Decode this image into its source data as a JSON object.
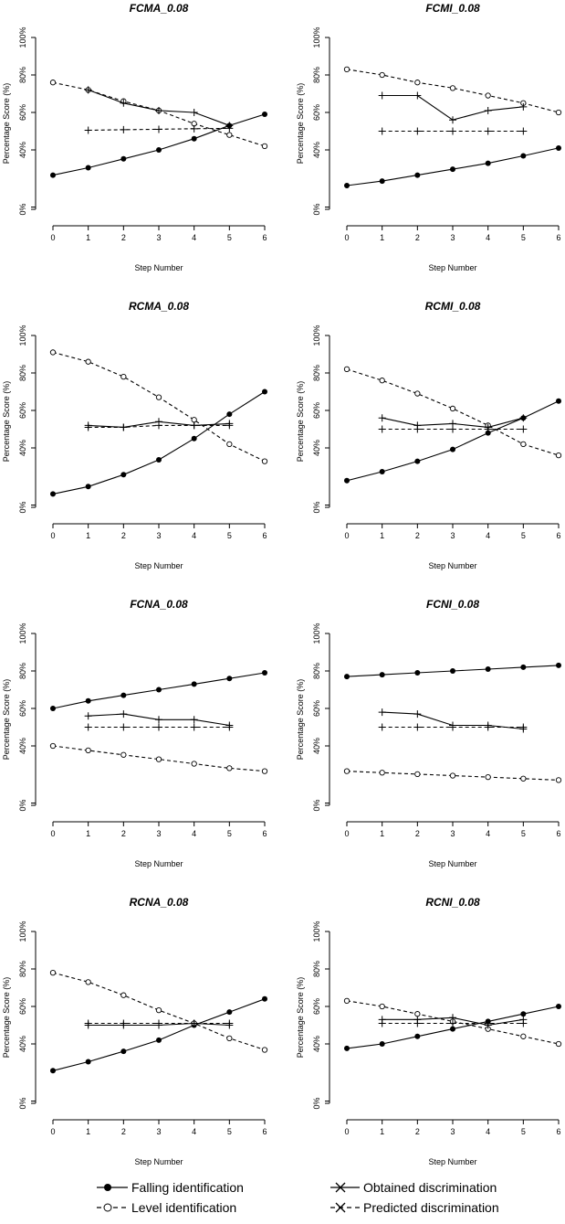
{
  "chart_data": [
    {
      "type": "line",
      "title": "FCMA_0.08",
      "xlabel": "Step Number",
      "ylabel": "Percentage Score (%)",
      "x_ticks": [
        "0",
        "1",
        "2",
        "3",
        "4",
        "5",
        "6"
      ],
      "y_ticks": [
        "0%",
        "40%",
        "60%",
        "80%",
        "100%"
      ],
      "ylim": [
        0,
        100
      ],
      "series": [
        {
          "key": "falling",
          "x": [
            0,
            1,
            2,
            3,
            4,
            5,
            6
          ],
          "values": [
            23,
            28,
            34,
            40,
            46,
            53,
            59
          ]
        },
        {
          "key": "level",
          "x": [
            0,
            1,
            2,
            3,
            4,
            5,
            6
          ],
          "values": [
            76,
            72,
            66,
            61,
            54,
            48,
            42
          ]
        },
        {
          "key": "obtained",
          "x": [
            1,
            2,
            3,
            4,
            5
          ],
          "values": [
            72,
            65,
            61,
            60,
            53
          ]
        },
        {
          "key": "predicted",
          "x": [
            1,
            2,
            3,
            4,
            5
          ],
          "values": [
            50.5,
            50.8,
            51,
            51.3,
            51.5
          ]
        }
      ]
    },
    {
      "type": "line",
      "title": "FCMI_0.08",
      "xlabel": "Step Number",
      "ylabel": "Percentage Score (%)",
      "x_ticks": [
        "0",
        "1",
        "2",
        "3",
        "4",
        "5",
        "6"
      ],
      "y_ticks": [
        "0%",
        "40%",
        "60%",
        "80%",
        "100%"
      ],
      "ylim": [
        0,
        100
      ],
      "series": [
        {
          "key": "falling",
          "x": [
            0,
            1,
            2,
            3,
            4,
            5,
            6
          ],
          "values": [
            16,
            19,
            23,
            27,
            31,
            36,
            41
          ]
        },
        {
          "key": "level",
          "x": [
            0,
            1,
            2,
            3,
            4,
            5,
            6
          ],
          "values": [
            83,
            80,
            76,
            73,
            69,
            65,
            60
          ]
        },
        {
          "key": "obtained",
          "x": [
            1,
            2,
            3,
            4,
            5
          ],
          "values": [
            69,
            69,
            56,
            61,
            63
          ]
        },
        {
          "key": "predicted",
          "x": [
            1,
            2,
            3,
            4,
            5
          ],
          "values": [
            50,
            50,
            50,
            50,
            50
          ]
        }
      ]
    },
    {
      "type": "line",
      "title": "RCMA_0.08",
      "xlabel": "Step Number",
      "ylabel": "Percentage Score (%)",
      "x_ticks": [
        "0",
        "1",
        "2",
        "3",
        "4",
        "5",
        "6"
      ],
      "y_ticks": [
        "0%",
        "40%",
        "60%",
        "80%",
        "100%"
      ],
      "ylim": [
        0,
        100
      ],
      "series": [
        {
          "key": "falling",
          "x": [
            0,
            1,
            2,
            3,
            4,
            5,
            6
          ],
          "values": [
            9,
            14,
            22,
            32,
            45,
            58,
            70
          ]
        },
        {
          "key": "level",
          "x": [
            0,
            1,
            2,
            3,
            4,
            5,
            6
          ],
          "values": [
            91,
            86,
            78,
            67,
            55,
            42,
            31
          ]
        },
        {
          "key": "obtained",
          "x": [
            1,
            2,
            3,
            4,
            5
          ],
          "values": [
            52,
            51,
            54,
            52,
            53
          ]
        },
        {
          "key": "predicted",
          "x": [
            1,
            2,
            3,
            4,
            5
          ],
          "values": [
            51,
            51,
            52,
            52,
            52
          ]
        }
      ]
    },
    {
      "type": "line",
      "title": "RCMI_0.08",
      "xlabel": "Step Number",
      "ylabel": "Percentage Score (%)",
      "x_ticks": [
        "0",
        "1",
        "2",
        "3",
        "4",
        "5",
        "6"
      ],
      "y_ticks": [
        "0%",
        "40%",
        "60%",
        "80%",
        "100%"
      ],
      "ylim": [
        0,
        100
      ],
      "series": [
        {
          "key": "falling",
          "x": [
            0,
            1,
            2,
            3,
            4,
            5,
            6
          ],
          "values": [
            18,
            24,
            31,
            39,
            48,
            56,
            65
          ]
        },
        {
          "key": "level",
          "x": [
            0,
            1,
            2,
            3,
            4,
            5,
            6
          ],
          "values": [
            82,
            76,
            69,
            61,
            52,
            42,
            35
          ]
        },
        {
          "key": "obtained",
          "x": [
            1,
            2,
            3,
            4,
            5
          ],
          "values": [
            56,
            52,
            53,
            51,
            56
          ]
        },
        {
          "key": "predicted",
          "x": [
            1,
            2,
            3,
            4,
            5
          ],
          "values": [
            50,
            50,
            50,
            50,
            50
          ]
        }
      ]
    },
    {
      "type": "line",
      "title": "FCNA_0.08",
      "xlabel": "Step Number",
      "ylabel": "Percentage Score (%)",
      "x_ticks": [
        "0",
        "1",
        "2",
        "3",
        "4",
        "5",
        "6"
      ],
      "y_ticks": [
        "0%",
        "40%",
        "60%",
        "80%",
        "100%"
      ],
      "ylim": [
        0,
        100
      ],
      "series": [
        {
          "key": "falling",
          "x": [
            0,
            1,
            2,
            3,
            4,
            5,
            6
          ],
          "values": [
            60,
            64,
            67,
            70,
            73,
            76,
            79
          ]
        },
        {
          "key": "level",
          "x": [
            0,
            1,
            2,
            3,
            4,
            5,
            6
          ],
          "values": [
            40,
            37,
            34,
            31,
            28,
            25,
            23
          ]
        },
        {
          "key": "obtained",
          "x": [
            1,
            2,
            3,
            4,
            5
          ],
          "values": [
            56,
            57,
            54,
            54,
            51
          ]
        },
        {
          "key": "predicted",
          "x": [
            1,
            2,
            3,
            4,
            5
          ],
          "values": [
            50,
            50,
            50,
            50,
            50
          ]
        }
      ]
    },
    {
      "type": "line",
      "title": "FCNI_0.08",
      "xlabel": "Step Number",
      "ylabel": "Percentage Score (%)",
      "x_ticks": [
        "0",
        "1",
        "2",
        "3",
        "4",
        "5",
        "6"
      ],
      "y_ticks": [
        "0%",
        "40%",
        "60%",
        "80%",
        "100%"
      ],
      "ylim": [
        0,
        100
      ],
      "series": [
        {
          "key": "falling",
          "x": [
            0,
            1,
            2,
            3,
            4,
            5,
            6
          ],
          "values": [
            77,
            78,
            79,
            80,
            81,
            82,
            83
          ]
        },
        {
          "key": "level",
          "x": [
            0,
            1,
            2,
            3,
            4,
            5,
            6
          ],
          "values": [
            23,
            22,
            21,
            20,
            19,
            18,
            17
          ]
        },
        {
          "key": "obtained",
          "x": [
            1,
            2,
            3,
            4,
            5
          ],
          "values": [
            58,
            57,
            51,
            51,
            49
          ]
        },
        {
          "key": "predicted",
          "x": [
            1,
            2,
            3,
            4,
            5
          ],
          "values": [
            50,
            50,
            50,
            50,
            50
          ]
        }
      ]
    },
    {
      "type": "line",
      "title": "RCNA_0.08",
      "xlabel": "Step Number",
      "ylabel": "Percentage Score (%)",
      "x_ticks": [
        "0",
        "1",
        "2",
        "3",
        "4",
        "5",
        "6"
      ],
      "y_ticks": [
        "0%",
        "40%",
        "60%",
        "80%",
        "100%"
      ],
      "ylim": [
        0,
        100
      ],
      "series": [
        {
          "key": "falling",
          "x": [
            0,
            1,
            2,
            3,
            4,
            5,
            6
          ],
          "values": [
            22,
            28,
            35,
            42,
            50,
            57,
            64
          ]
        },
        {
          "key": "level",
          "x": [
            0,
            1,
            2,
            3,
            4,
            5,
            6
          ],
          "values": [
            78,
            73,
            66,
            58,
            51,
            43,
            36
          ]
        },
        {
          "key": "obtained",
          "x": [
            1,
            2,
            3,
            4,
            5
          ],
          "values": [
            50,
            50,
            50,
            51,
            50
          ]
        },
        {
          "key": "predicted",
          "x": [
            1,
            2,
            3,
            4,
            5
          ],
          "values": [
            51,
            51,
            51,
            51,
            51
          ]
        }
      ]
    },
    {
      "type": "line",
      "title": "RCNI_0.08",
      "xlabel": "Step Number",
      "ylabel": "Percentage Score (%)",
      "x_ticks": [
        "0",
        "1",
        "2",
        "3",
        "4",
        "5",
        "6"
      ],
      "y_ticks": [
        "0%",
        "40%",
        "60%",
        "80%",
        "100%"
      ],
      "ylim": [
        0,
        100
      ],
      "series": [
        {
          "key": "falling",
          "x": [
            0,
            1,
            2,
            3,
            4,
            5,
            6
          ],
          "values": [
            37,
            40,
            44,
            48,
            52,
            56,
            60
          ]
        },
        {
          "key": "level",
          "x": [
            0,
            1,
            2,
            3,
            4,
            5,
            6
          ],
          "values": [
            63,
            60,
            56,
            52,
            48,
            44,
            40
          ]
        },
        {
          "key": "obtained",
          "x": [
            1,
            2,
            3,
            4,
            5
          ],
          "values": [
            53,
            53,
            54,
            50,
            53
          ]
        },
        {
          "key": "predicted",
          "x": [
            1,
            2,
            3,
            4,
            5
          ],
          "values": [
            51,
            51,
            51,
            51,
            51
          ]
        }
      ]
    }
  ],
  "legend": [
    {
      "key": "falling",
      "label": "Falling identification"
    },
    {
      "key": "level",
      "label": "Level identification"
    },
    {
      "key": "obtained",
      "label": "Obtained discrimination"
    },
    {
      "key": "predicted",
      "label": "Predicted discrimination"
    }
  ],
  "colors": {
    "line": "#000000",
    "open_marker_fill": "#ffffff",
    "background": "#ffffff"
  }
}
